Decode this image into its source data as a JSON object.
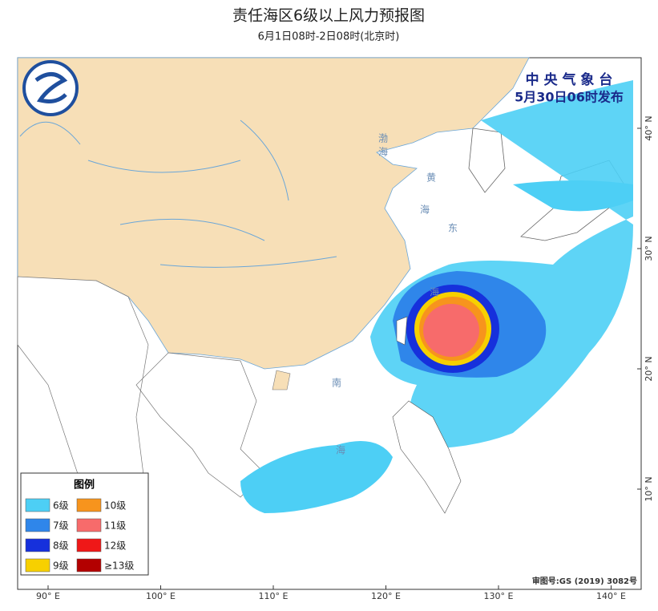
{
  "header": {
    "title": "责任海区6级以上风力预报图",
    "subtitle": "6月1日08时-2日08时(北京时)"
  },
  "issuer": {
    "agency": "中 央 气 象 台",
    "time": "5月30日06时发布"
  },
  "sea_labels": [
    "渤",
    "海",
    "黄",
    "海",
    "东",
    "海",
    "南",
    "海"
  ],
  "lon_labels": [
    "90° E",
    "100° E",
    "110° E",
    "120° E",
    "130° E",
    "140° E"
  ],
  "lat_labels": [
    "40° N",
    "30° N",
    "20° N",
    "10° N"
  ],
  "legend": {
    "title": "图例",
    "items": [
      {
        "label": "6级",
        "color": "#4dcff5"
      },
      {
        "label": "10级",
        "color": "#f7941d"
      },
      {
        "label": "7级",
        "color": "#2f86ea"
      },
      {
        "label": "11级",
        "color": "#f76b6b"
      },
      {
        "label": "8级",
        "color": "#1630dc"
      },
      {
        "label": "12级",
        "color": "#ef1818"
      },
      {
        "label": "9级",
        "color": "#f7d000"
      },
      {
        "label": "≥13级",
        "color": "#b30000"
      }
    ]
  },
  "approval": "审图号:GS (2019) 3082号"
}
